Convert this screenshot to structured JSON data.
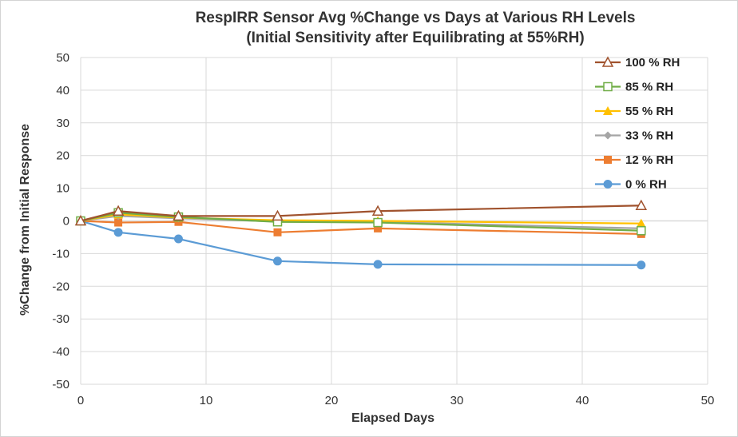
{
  "chart_data": {
    "type": "line",
    "title": "RespIRR Sensor Avg %Change  vs Days at Various RH Levels",
    "subtitle": "(Initial Sensitivity after Equilibrating at 55%RH)",
    "xlabel": "Elapsed Days",
    "ylabel": "%Change  from Initial Response",
    "xlim": [
      0,
      50
    ],
    "ylim": [
      -50,
      50
    ],
    "x_ticks": [
      "0",
      "10",
      "20",
      "30",
      "40",
      "50"
    ],
    "y_ticks": [
      "50",
      "40",
      "30",
      "20",
      "10",
      "0",
      "-10",
      "-20",
      "-30",
      "-40",
      "-50"
    ],
    "grid": true,
    "legend_position": "top-right",
    "x": [
      0,
      3,
      7.8,
      15.7,
      23.7,
      44.7
    ],
    "series": [
      {
        "name": "100 % RH",
        "color": "#A0522D",
        "marker": "triangle-open",
        "values": [
          0,
          3,
          1.5,
          1.5,
          3,
          4.7
        ]
      },
      {
        "name": "85 % RH",
        "color": "#70AD47",
        "marker": "square-open",
        "values": [
          0,
          2.5,
          1.2,
          -0.3,
          -0.5,
          -3
        ]
      },
      {
        "name": "55 % RH",
        "color": "#FFC000",
        "marker": "triangle",
        "values": [
          0,
          2,
          1,
          0.2,
          0,
          -0.8
        ]
      },
      {
        "name": "33 % RH",
        "color": "#A5A5A5",
        "marker": "diamond",
        "values": [
          0,
          1.5,
          0.8,
          -0.2,
          -0.3,
          -2.3
        ]
      },
      {
        "name": "12 % RH",
        "color": "#ED7D31",
        "marker": "square",
        "values": [
          0,
          -0.5,
          -0.3,
          -3.5,
          -2.3,
          -4
        ]
      },
      {
        "name": "0 % RH",
        "color": "#5B9BD5",
        "marker": "circle",
        "values": [
          0,
          -3.5,
          -5.5,
          -12.3,
          -13.3,
          -13.5
        ]
      }
    ]
  }
}
